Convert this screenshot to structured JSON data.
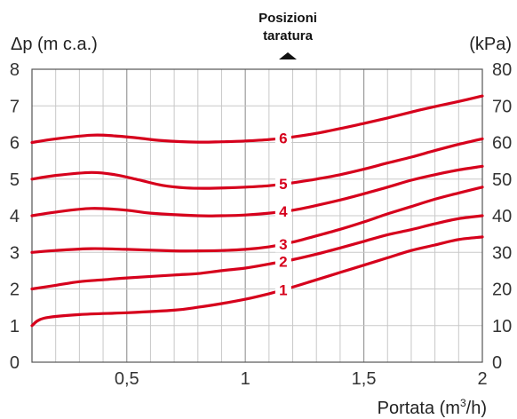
{
  "chart_data": {
    "type": "line",
    "title": "",
    "ylabel_left": "Δp (m c.a.)",
    "ylabel_right": "(kPa)",
    "xlabel_prefix": "Portata (m",
    "xlabel_sup": "3",
    "xlabel_suffix": "/h)",
    "settings_label_line1": "Posizioni",
    "settings_label_line2": "taratura",
    "xlim": [
      0.1,
      2
    ],
    "ylim": [
      0,
      8
    ],
    "x_ticks": [
      {
        "value": 0.5,
        "label": "0,5"
      },
      {
        "value": 1,
        "label": "1"
      },
      {
        "value": 1.5,
        "label": "1,5"
      },
      {
        "value": 2,
        "label": "2"
      }
    ],
    "y_ticks_left": [
      {
        "value": 0,
        "label": "0"
      },
      {
        "value": 1,
        "label": "1"
      },
      {
        "value": 2,
        "label": "2"
      },
      {
        "value": 3,
        "label": "3"
      },
      {
        "value": 4,
        "label": "4"
      },
      {
        "value": 5,
        "label": "5"
      },
      {
        "value": 6,
        "label": "6"
      },
      {
        "value": 7,
        "label": "7"
      },
      {
        "value": 8,
        "label": "8"
      }
    ],
    "y_ticks_right": [
      {
        "value": 0,
        "label": "0"
      },
      {
        "value": 1,
        "label": "10"
      },
      {
        "value": 2,
        "label": "20"
      },
      {
        "value": 3,
        "label": "30"
      },
      {
        "value": 4,
        "label": "40"
      },
      {
        "value": 5,
        "label": "50"
      },
      {
        "value": 6,
        "label": "60"
      },
      {
        "value": 7,
        "label": "70"
      },
      {
        "value": 8,
        "label": "80"
      }
    ],
    "grid": true,
    "line_color": "#d6001c",
    "series": [
      {
        "name": "1",
        "label_x": 1.16,
        "points": [
          [
            0.1,
            1.0
          ],
          [
            0.15,
            1.2
          ],
          [
            0.3,
            1.3
          ],
          [
            0.5,
            1.35
          ],
          [
            0.7,
            1.42
          ],
          [
            0.8,
            1.5
          ],
          [
            0.9,
            1.6
          ],
          [
            1.0,
            1.72
          ],
          [
            1.1,
            1.87
          ],
          [
            1.2,
            2.05
          ],
          [
            1.3,
            2.25
          ],
          [
            1.4,
            2.45
          ],
          [
            1.5,
            2.65
          ],
          [
            1.6,
            2.85
          ],
          [
            1.7,
            3.05
          ],
          [
            1.8,
            3.2
          ],
          [
            1.9,
            3.35
          ],
          [
            2.0,
            3.42
          ]
        ]
      },
      {
        "name": "2",
        "label_x": 1.16,
        "points": [
          [
            0.1,
            2.0
          ],
          [
            0.2,
            2.1
          ],
          [
            0.3,
            2.2
          ],
          [
            0.4,
            2.25
          ],
          [
            0.5,
            2.3
          ],
          [
            0.7,
            2.38
          ],
          [
            0.8,
            2.42
          ],
          [
            0.9,
            2.5
          ],
          [
            1.0,
            2.57
          ],
          [
            1.1,
            2.68
          ],
          [
            1.2,
            2.8
          ],
          [
            1.3,
            2.95
          ],
          [
            1.4,
            3.12
          ],
          [
            1.5,
            3.3
          ],
          [
            1.6,
            3.48
          ],
          [
            1.7,
            3.62
          ],
          [
            1.8,
            3.78
          ],
          [
            1.9,
            3.92
          ],
          [
            2.0,
            4.0
          ]
        ]
      },
      {
        "name": "3",
        "label_x": 1.16,
        "points": [
          [
            0.1,
            3.0
          ],
          [
            0.2,
            3.05
          ],
          [
            0.35,
            3.1
          ],
          [
            0.5,
            3.08
          ],
          [
            0.7,
            3.04
          ],
          [
            0.8,
            3.04
          ],
          [
            0.9,
            3.05
          ],
          [
            1.0,
            3.08
          ],
          [
            1.1,
            3.15
          ],
          [
            1.2,
            3.28
          ],
          [
            1.3,
            3.45
          ],
          [
            1.4,
            3.63
          ],
          [
            1.5,
            3.83
          ],
          [
            1.6,
            4.05
          ],
          [
            1.7,
            4.25
          ],
          [
            1.8,
            4.45
          ],
          [
            1.9,
            4.62
          ],
          [
            2.0,
            4.78
          ]
        ]
      },
      {
        "name": "4",
        "label_x": 1.16,
        "points": [
          [
            0.1,
            4.0
          ],
          [
            0.2,
            4.1
          ],
          [
            0.35,
            4.2
          ],
          [
            0.5,
            4.15
          ],
          [
            0.6,
            4.07
          ],
          [
            0.8,
            4.0
          ],
          [
            0.9,
            4.0
          ],
          [
            1.0,
            4.02
          ],
          [
            1.1,
            4.07
          ],
          [
            1.2,
            4.15
          ],
          [
            1.3,
            4.28
          ],
          [
            1.4,
            4.43
          ],
          [
            1.5,
            4.6
          ],
          [
            1.6,
            4.78
          ],
          [
            1.7,
            4.97
          ],
          [
            1.8,
            5.12
          ],
          [
            1.9,
            5.25
          ],
          [
            2.0,
            5.35
          ]
        ]
      },
      {
        "name": "5",
        "label_x": 1.16,
        "points": [
          [
            0.1,
            5.0
          ],
          [
            0.2,
            5.1
          ],
          [
            0.35,
            5.18
          ],
          [
            0.45,
            5.12
          ],
          [
            0.55,
            4.98
          ],
          [
            0.65,
            4.83
          ],
          [
            0.75,
            4.76
          ],
          [
            0.85,
            4.75
          ],
          [
            1.0,
            4.78
          ],
          [
            1.1,
            4.82
          ],
          [
            1.2,
            4.9
          ],
          [
            1.3,
            5.0
          ],
          [
            1.4,
            5.12
          ],
          [
            1.5,
            5.27
          ],
          [
            1.6,
            5.44
          ],
          [
            1.7,
            5.6
          ],
          [
            1.8,
            5.78
          ],
          [
            1.9,
            5.95
          ],
          [
            2.0,
            6.1
          ]
        ]
      },
      {
        "name": "6",
        "label_x": 1.16,
        "points": [
          [
            0.1,
            6.0
          ],
          [
            0.2,
            6.1
          ],
          [
            0.35,
            6.2
          ],
          [
            0.45,
            6.18
          ],
          [
            0.55,
            6.12
          ],
          [
            0.65,
            6.05
          ],
          [
            0.8,
            6.01
          ],
          [
            0.9,
            6.02
          ],
          [
            1.0,
            6.04
          ],
          [
            1.1,
            6.08
          ],
          [
            1.2,
            6.15
          ],
          [
            1.3,
            6.25
          ],
          [
            1.4,
            6.38
          ],
          [
            1.5,
            6.52
          ],
          [
            1.6,
            6.67
          ],
          [
            1.7,
            6.83
          ],
          [
            1.8,
            6.98
          ],
          [
            1.9,
            7.12
          ],
          [
            2.0,
            7.27
          ]
        ]
      }
    ]
  }
}
